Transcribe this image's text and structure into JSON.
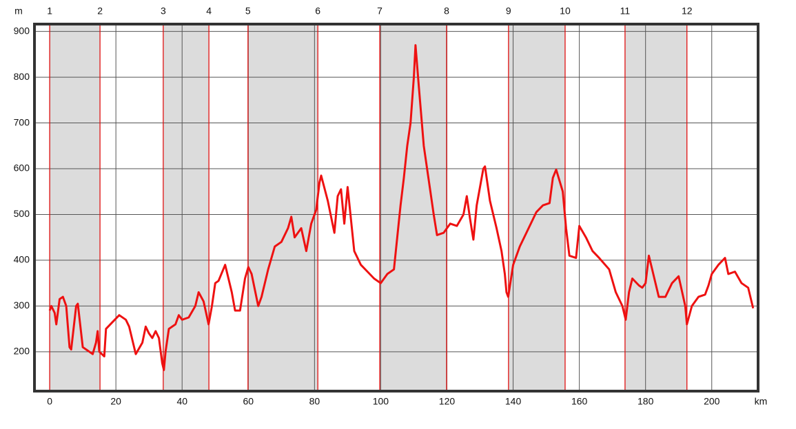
{
  "chart_data": {
    "type": "line",
    "y_unit": "m",
    "x_unit": "km",
    "color": "#ee1111",
    "xlim": [
      -4.6,
      214
    ],
    "ylim": [
      114,
      916
    ],
    "xticks": [
      0,
      20,
      40,
      60,
      80,
      100,
      120,
      140,
      160,
      180,
      200
    ],
    "yticks": [
      200,
      300,
      400,
      500,
      600,
      700,
      800,
      900
    ],
    "grid": true,
    "stage_color": "#e01010",
    "shade_color": "#dcdcdc",
    "stages": [
      {
        "label": "1",
        "km": 0
      },
      {
        "label": "2",
        "km": 15.2
      },
      {
        "label": "3",
        "km": 34.3
      },
      {
        "label": "4",
        "km": 48.1
      },
      {
        "label": "5",
        "km": 59.9
      },
      {
        "label": "6",
        "km": 81.0
      },
      {
        "label": "7",
        "km": 99.7
      },
      {
        "label": "8",
        "km": 119.9
      },
      {
        "label": "9",
        "km": 138.6
      },
      {
        "label": "10",
        "km": 155.7
      },
      {
        "label": "11",
        "km": 173.8
      },
      {
        "label": "12",
        "km": 192.5
      }
    ],
    "x": [
      0,
      0.5,
      1.5,
      2,
      3,
      4,
      5,
      6,
      6.5,
      8,
      8.5,
      10,
      12,
      13,
      14,
      14.5,
      15,
      16.5,
      17,
      19,
      21,
      23,
      24,
      26,
      28,
      29,
      30,
      31,
      32,
      33,
      34,
      34.5,
      35,
      36,
      38,
      39,
      40,
      42,
      44,
      45,
      46.5,
      48,
      49,
      50,
      51,
      53,
      54,
      55,
      56,
      57.5,
      59,
      60,
      61,
      63,
      64,
      66,
      68,
      70,
      72,
      73,
      74,
      76,
      77.5,
      79,
      80.5,
      81.5,
      82,
      84,
      86,
      87,
      88,
      89,
      90,
      92,
      94,
      96,
      98,
      100,
      102,
      104,
      105,
      106,
      107,
      108,
      109,
      110,
      110.5,
      111.5,
      113,
      115,
      116,
      117,
      119,
      121,
      123,
      125,
      126,
      127,
      128,
      129,
      131,
      131.5,
      133,
      135,
      136.5,
      137.5,
      138,
      138.5,
      140,
      142,
      144,
      147,
      149,
      151,
      152,
      153,
      155,
      156,
      157,
      159,
      160,
      162,
      164,
      166,
      169,
      171,
      173,
      174,
      175,
      176,
      178,
      179,
      180,
      181,
      182,
      184,
      186,
      188,
      190,
      192,
      192.5,
      194,
      196,
      198,
      199,
      200,
      202,
      204,
      205,
      207,
      209,
      211,
      212,
      212.5
    ],
    "values": [
      290,
      300,
      285,
      260,
      315,
      320,
      300,
      210,
      205,
      300,
      305,
      210,
      200,
      195,
      220,
      245,
      200,
      190,
      250,
      265,
      280,
      270,
      255,
      195,
      220,
      255,
      240,
      230,
      245,
      230,
      175,
      160,
      200,
      250,
      260,
      280,
      270,
      275,
      300,
      330,
      310,
      260,
      300,
      350,
      355,
      390,
      360,
      330,
      290,
      290,
      360,
      385,
      370,
      300,
      320,
      380,
      430,
      440,
      470,
      495,
      450,
      470,
      420,
      480,
      510,
      570,
      585,
      530,
      460,
      540,
      555,
      480,
      560,
      420,
      390,
      375,
      360,
      350,
      370,
      380,
      450,
      520,
      580,
      650,
      700,
      800,
      870,
      780,
      650,
      550,
      500,
      455,
      460,
      480,
      475,
      500,
      540,
      490,
      445,
      520,
      600,
      605,
      530,
      470,
      420,
      370,
      330,
      320,
      390,
      430,
      460,
      505,
      520,
      525,
      580,
      598,
      550,
      470,
      410,
      405,
      475,
      450,
      420,
      405,
      380,
      330,
      300,
      270,
      330,
      360,
      345,
      340,
      350,
      410,
      380,
      320,
      320,
      350,
      365,
      300,
      260,
      300,
      320,
      325,
      345,
      370,
      390,
      405,
      370,
      375,
      350,
      340,
      310,
      295
    ]
  }
}
